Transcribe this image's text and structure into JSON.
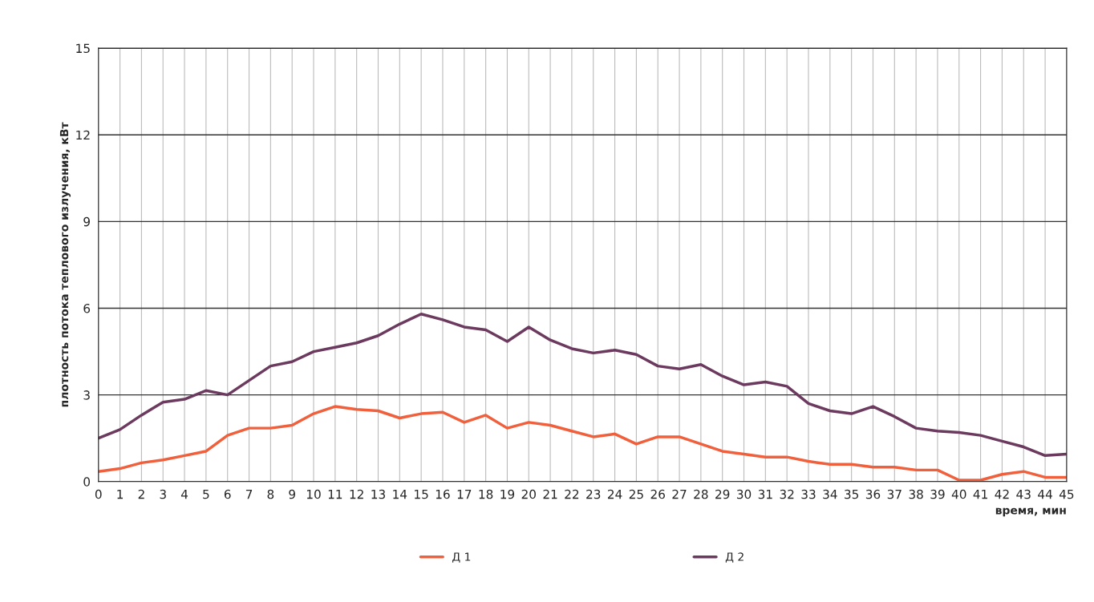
{
  "chart_data": {
    "type": "line",
    "xlabel": "время, мин",
    "ylabel": "плотность потока теплового излучения, кВт",
    "categories": [
      "0",
      "1",
      "2",
      "3",
      "4",
      "5",
      "6",
      "7",
      "8",
      "9",
      "10",
      "11",
      "12",
      "13",
      "14",
      "15",
      "16",
      "17",
      "18",
      "19",
      "20",
      "21",
      "22",
      "23",
      "24",
      "25",
      "26",
      "27",
      "28",
      "29",
      "30",
      "31",
      "32",
      "33",
      "34",
      "35",
      "36",
      "37",
      "38",
      "39",
      "40",
      "41",
      "42",
      "43",
      "44",
      "45"
    ],
    "series": [
      {
        "name": "Д 1",
        "color": "#f0603c",
        "values": [
          0.35,
          0.45,
          0.65,
          0.75,
          0.9,
          1.05,
          1.6,
          1.85,
          1.85,
          1.95,
          2.35,
          2.6,
          2.5,
          2.45,
          2.2,
          2.35,
          2.4,
          2.05,
          2.3,
          1.85,
          2.05,
          1.95,
          1.75,
          1.55,
          1.65,
          1.3,
          1.55,
          1.55,
          1.3,
          1.05,
          0.95,
          0.85,
          0.85,
          0.7,
          0.6,
          0.6,
          0.5,
          0.5,
          0.4,
          0.4,
          0.05,
          0.05,
          0.25,
          0.35,
          0.15,
          0.15
        ]
      },
      {
        "name": "Д 2",
        "color": "#6b3a5e",
        "values": [
          1.5,
          1.8,
          2.3,
          2.75,
          2.85,
          3.15,
          3.0,
          3.5,
          4.0,
          4.15,
          4.5,
          4.65,
          4.8,
          5.05,
          5.45,
          5.8,
          5.6,
          5.35,
          5.25,
          4.85,
          5.35,
          4.9,
          4.6,
          4.45,
          4.55,
          4.4,
          4.0,
          3.9,
          4.05,
          3.65,
          3.35,
          3.45,
          3.3,
          2.7,
          2.45,
          2.35,
          2.6,
          2.25,
          1.85,
          1.75,
          1.7,
          1.6,
          1.4,
          1.2,
          0.9,
          0.95
        ]
      }
    ],
    "ylim": [
      0,
      15
    ],
    "yticks": [
      0,
      3,
      6,
      9,
      12,
      15
    ],
    "grid": true,
    "legend": "bottom",
    "marker": "none",
    "line_style": "solid"
  }
}
